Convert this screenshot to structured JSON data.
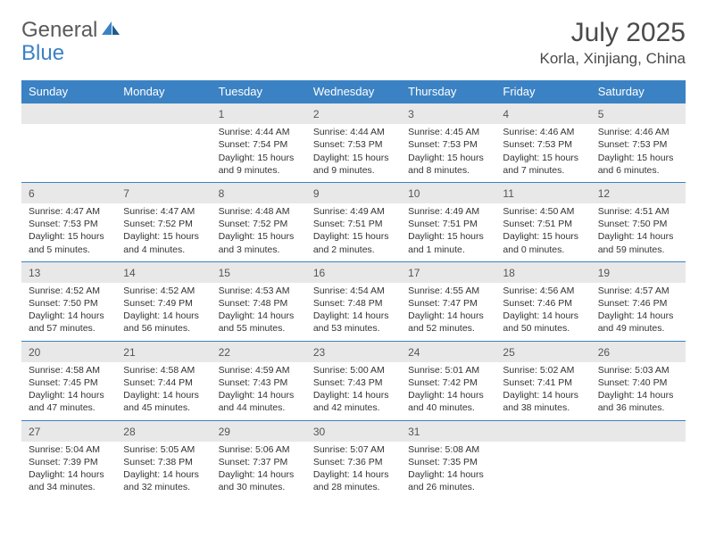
{
  "brand": {
    "part1": "General",
    "part2": "Blue"
  },
  "title": "July 2025",
  "location": "Korla, Xinjiang, China",
  "colors": {
    "header_bg": "#3b82c4",
    "header_text": "#ffffff",
    "daynum_bg": "#e8e8e8",
    "text": "#333333",
    "brand_gray": "#5a5a5a",
    "brand_blue": "#3b82c4"
  },
  "daysOfWeek": [
    "Sunday",
    "Monday",
    "Tuesday",
    "Wednesday",
    "Thursday",
    "Friday",
    "Saturday"
  ],
  "weeks": [
    [
      {
        "empty": true
      },
      {
        "empty": true
      },
      {
        "day": "1",
        "sunrise": "4:44 AM",
        "sunset": "7:54 PM",
        "daylight": "15 hours and 9 minutes."
      },
      {
        "day": "2",
        "sunrise": "4:44 AM",
        "sunset": "7:53 PM",
        "daylight": "15 hours and 9 minutes."
      },
      {
        "day": "3",
        "sunrise": "4:45 AM",
        "sunset": "7:53 PM",
        "daylight": "15 hours and 8 minutes."
      },
      {
        "day": "4",
        "sunrise": "4:46 AM",
        "sunset": "7:53 PM",
        "daylight": "15 hours and 7 minutes."
      },
      {
        "day": "5",
        "sunrise": "4:46 AM",
        "sunset": "7:53 PM",
        "daylight": "15 hours and 6 minutes."
      }
    ],
    [
      {
        "day": "6",
        "sunrise": "4:47 AM",
        "sunset": "7:53 PM",
        "daylight": "15 hours and 5 minutes."
      },
      {
        "day": "7",
        "sunrise": "4:47 AM",
        "sunset": "7:52 PM",
        "daylight": "15 hours and 4 minutes."
      },
      {
        "day": "8",
        "sunrise": "4:48 AM",
        "sunset": "7:52 PM",
        "daylight": "15 hours and 3 minutes."
      },
      {
        "day": "9",
        "sunrise": "4:49 AM",
        "sunset": "7:51 PM",
        "daylight": "15 hours and 2 minutes."
      },
      {
        "day": "10",
        "sunrise": "4:49 AM",
        "sunset": "7:51 PM",
        "daylight": "15 hours and 1 minute."
      },
      {
        "day": "11",
        "sunrise": "4:50 AM",
        "sunset": "7:51 PM",
        "daylight": "15 hours and 0 minutes."
      },
      {
        "day": "12",
        "sunrise": "4:51 AM",
        "sunset": "7:50 PM",
        "daylight": "14 hours and 59 minutes."
      }
    ],
    [
      {
        "day": "13",
        "sunrise": "4:52 AM",
        "sunset": "7:50 PM",
        "daylight": "14 hours and 57 minutes."
      },
      {
        "day": "14",
        "sunrise": "4:52 AM",
        "sunset": "7:49 PM",
        "daylight": "14 hours and 56 minutes."
      },
      {
        "day": "15",
        "sunrise": "4:53 AM",
        "sunset": "7:48 PM",
        "daylight": "14 hours and 55 minutes."
      },
      {
        "day": "16",
        "sunrise": "4:54 AM",
        "sunset": "7:48 PM",
        "daylight": "14 hours and 53 minutes."
      },
      {
        "day": "17",
        "sunrise": "4:55 AM",
        "sunset": "7:47 PM",
        "daylight": "14 hours and 52 minutes."
      },
      {
        "day": "18",
        "sunrise": "4:56 AM",
        "sunset": "7:46 PM",
        "daylight": "14 hours and 50 minutes."
      },
      {
        "day": "19",
        "sunrise": "4:57 AM",
        "sunset": "7:46 PM",
        "daylight": "14 hours and 49 minutes."
      }
    ],
    [
      {
        "day": "20",
        "sunrise": "4:58 AM",
        "sunset": "7:45 PM",
        "daylight": "14 hours and 47 minutes."
      },
      {
        "day": "21",
        "sunrise": "4:58 AM",
        "sunset": "7:44 PM",
        "daylight": "14 hours and 45 minutes."
      },
      {
        "day": "22",
        "sunrise": "4:59 AM",
        "sunset": "7:43 PM",
        "daylight": "14 hours and 44 minutes."
      },
      {
        "day": "23",
        "sunrise": "5:00 AM",
        "sunset": "7:43 PM",
        "daylight": "14 hours and 42 minutes."
      },
      {
        "day": "24",
        "sunrise": "5:01 AM",
        "sunset": "7:42 PM",
        "daylight": "14 hours and 40 minutes."
      },
      {
        "day": "25",
        "sunrise": "5:02 AM",
        "sunset": "7:41 PM",
        "daylight": "14 hours and 38 minutes."
      },
      {
        "day": "26",
        "sunrise": "5:03 AM",
        "sunset": "7:40 PM",
        "daylight": "14 hours and 36 minutes."
      }
    ],
    [
      {
        "day": "27",
        "sunrise": "5:04 AM",
        "sunset": "7:39 PM",
        "daylight": "14 hours and 34 minutes."
      },
      {
        "day": "28",
        "sunrise": "5:05 AM",
        "sunset": "7:38 PM",
        "daylight": "14 hours and 32 minutes."
      },
      {
        "day": "29",
        "sunrise": "5:06 AM",
        "sunset": "7:37 PM",
        "daylight": "14 hours and 30 minutes."
      },
      {
        "day": "30",
        "sunrise": "5:07 AM",
        "sunset": "7:36 PM",
        "daylight": "14 hours and 28 minutes."
      },
      {
        "day": "31",
        "sunrise": "5:08 AM",
        "sunset": "7:35 PM",
        "daylight": "14 hours and 26 minutes."
      },
      {
        "empty": true
      },
      {
        "empty": true
      }
    ]
  ],
  "labels": {
    "sunrise": "Sunrise:",
    "sunset": "Sunset:",
    "daylight": "Daylight:"
  }
}
